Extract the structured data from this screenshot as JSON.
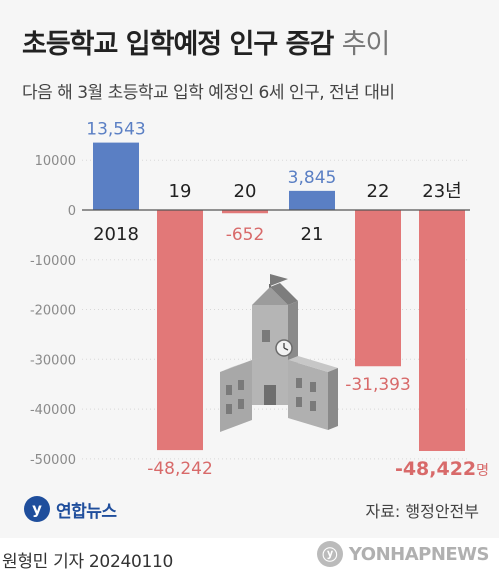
{
  "header": {
    "title": "초등학교 입학예정 인구 증감",
    "title_suffix": "추이",
    "subtitle": "다음 해 3월 초등학교 입학 예정인 6세 인구, 전년 대비"
  },
  "chart_data": {
    "type": "bar",
    "categories": [
      "2018",
      "19",
      "20",
      "21",
      "22",
      "23년"
    ],
    "values": [
      13543,
      -48242,
      -652,
      3845,
      -31393,
      -48422
    ],
    "value_labels": [
      "13,543",
      "-48,242",
      "-652",
      "3,845",
      "-31,393",
      "-48,422"
    ],
    "unit": "명",
    "yticks": [
      "10000",
      "0",
      "-10000",
      "-20000",
      "-30000",
      "-40000",
      "-50000"
    ],
    "ylim": [
      -52000,
      15000
    ],
    "colors": {
      "positive": "#5a7fc4",
      "negative": "#e27878"
    },
    "grid": false
  },
  "footer": {
    "logo_text": "연합뉴스",
    "logo_mark": "y",
    "source": "자료: 행정안전부",
    "byline": "원형민 기자  20240110",
    "watermark": "YONHAPNEWS"
  }
}
